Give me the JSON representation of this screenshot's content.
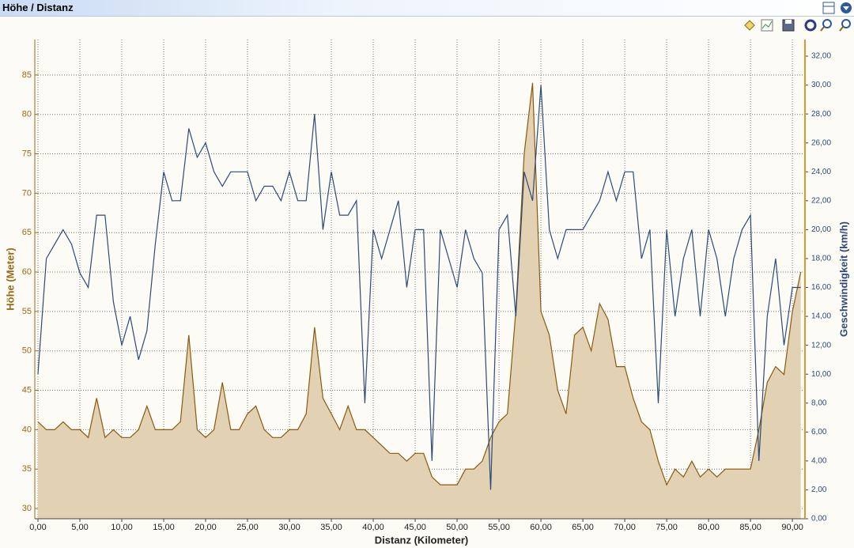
{
  "window_title": "Höhe / Distanz",
  "chart_data": {
    "type": "area-line",
    "x_label": "Distanz (Kilometer)",
    "y_label": "Höhe (Meter)",
    "y2_label": "Geschwindigkeit (km/h)",
    "x": [
      0,
      1,
      2,
      3,
      4,
      5,
      6,
      7,
      8,
      9,
      10,
      11,
      12,
      13,
      14,
      15,
      16,
      17,
      18,
      19,
      20,
      21,
      22,
      23,
      24,
      25,
      26,
      27,
      28,
      29,
      30,
      31,
      32,
      33,
      34,
      35,
      36,
      37,
      38,
      39,
      40,
      41,
      42,
      43,
      44,
      45,
      46,
      47,
      48,
      49,
      50,
      51,
      52,
      53,
      54,
      55,
      56,
      57,
      58,
      59,
      60,
      61,
      62,
      63,
      64,
      65,
      66,
      67,
      68,
      69,
      70,
      71,
      72,
      73,
      74,
      75,
      76,
      77,
      78,
      79,
      80,
      81,
      82,
      83,
      84,
      85,
      86,
      87,
      88,
      89,
      90,
      91
    ],
    "series": [
      {
        "name": "Höhe",
        "color": "#8a5a10",
        "fill": "#e3d1b3",
        "values": [
          41,
          40,
          40,
          41,
          40,
          40,
          39,
          44,
          39,
          40,
          39,
          39,
          40,
          43,
          40,
          40,
          40,
          41,
          52,
          40,
          39,
          40,
          46,
          40,
          40,
          42,
          43,
          40,
          39,
          39,
          40,
          40,
          42,
          53,
          44,
          42,
          40,
          43,
          40,
          40,
          39,
          38,
          37,
          37,
          36,
          37,
          37,
          34,
          33,
          33,
          33,
          35,
          35,
          36,
          39,
          41,
          42,
          55,
          75,
          84,
          55,
          52,
          45,
          42,
          52,
          53,
          50,
          56,
          54,
          48,
          48,
          44,
          41,
          40,
          36,
          33,
          35,
          34,
          36,
          34,
          35,
          34,
          35,
          35,
          35,
          35,
          40,
          46,
          48,
          47,
          55,
          60
        ]
      },
      {
        "name": "Geschwindigkeit",
        "color": "#2d4a7a",
        "axis": "y2",
        "values": [
          10,
          18,
          19,
          20,
          19,
          17,
          16,
          21,
          21,
          15,
          12,
          14,
          11,
          13,
          19,
          24,
          22,
          22,
          27,
          25,
          26,
          24,
          23,
          24,
          24,
          24,
          22,
          23,
          23,
          22,
          24,
          22,
          22,
          28,
          20,
          24,
          21,
          21,
          22,
          8,
          20,
          18,
          20,
          22,
          16,
          20,
          20,
          4,
          20,
          18,
          16,
          20,
          18,
          17,
          2,
          20,
          21,
          14,
          24,
          22,
          30,
          20,
          18,
          20,
          20,
          20,
          21,
          22,
          24,
          22,
          24,
          24,
          18,
          20,
          8,
          20,
          14,
          18,
          20,
          14,
          20,
          18,
          14,
          18,
          20,
          21,
          4,
          14,
          18,
          12,
          16,
          16
        ]
      }
    ],
    "xlim": [
      0,
      91.5
    ],
    "xticks": [
      {
        "value": 0,
        "label": "0,00"
      },
      {
        "value": 5,
        "label": "5,00"
      },
      {
        "value": 10,
        "label": "10,00"
      },
      {
        "value": 15,
        "label": "15,00"
      },
      {
        "value": 20,
        "label": "20,00"
      },
      {
        "value": 25,
        "label": "25,00"
      },
      {
        "value": 30,
        "label": "30,00"
      },
      {
        "value": 35,
        "label": "35,00"
      },
      {
        "value": 40,
        "label": "40,00"
      },
      {
        "value": 45,
        "label": "45,00"
      },
      {
        "value": 50,
        "label": "50,00"
      },
      {
        "value": 55,
        "label": "55,00"
      },
      {
        "value": 60,
        "label": "60,00"
      },
      {
        "value": 65,
        "label": "65,00"
      },
      {
        "value": 70,
        "label": "70,00"
      },
      {
        "value": 75,
        "label": "75,00"
      },
      {
        "value": 80,
        "label": "80,00"
      },
      {
        "value": 85,
        "label": "85,00"
      },
      {
        "value": 90,
        "label": "90,00"
      }
    ],
    "ylim": [
      28.7,
      89.5
    ],
    "yticks": [
      30,
      35,
      40,
      45,
      50,
      55,
      60,
      65,
      70,
      75,
      80,
      85
    ],
    "y2lim": [
      0,
      33.15
    ],
    "y2ticks": [
      {
        "value": 0,
        "label": "0,00"
      },
      {
        "value": 2,
        "label": "2,00"
      },
      {
        "value": 4,
        "label": "4,00"
      },
      {
        "value": 6,
        "label": "6,00"
      },
      {
        "value": 8,
        "label": "8,00"
      },
      {
        "value": 10,
        "label": "10,00"
      },
      {
        "value": 12,
        "label": "12,00"
      },
      {
        "value": 14,
        "label": "14,00"
      },
      {
        "value": 16,
        "label": "16,00"
      },
      {
        "value": 18,
        "label": "18,00"
      },
      {
        "value": 20,
        "label": "20,00"
      },
      {
        "value": 22,
        "label": "22,00"
      },
      {
        "value": 24,
        "label": "24,00"
      },
      {
        "value": 26,
        "label": "26,00"
      },
      {
        "value": 28,
        "label": "28,00"
      },
      {
        "value": 30,
        "label": "30,00"
      },
      {
        "value": 32,
        "label": "32,00"
      }
    ],
    "grid": true
  }
}
